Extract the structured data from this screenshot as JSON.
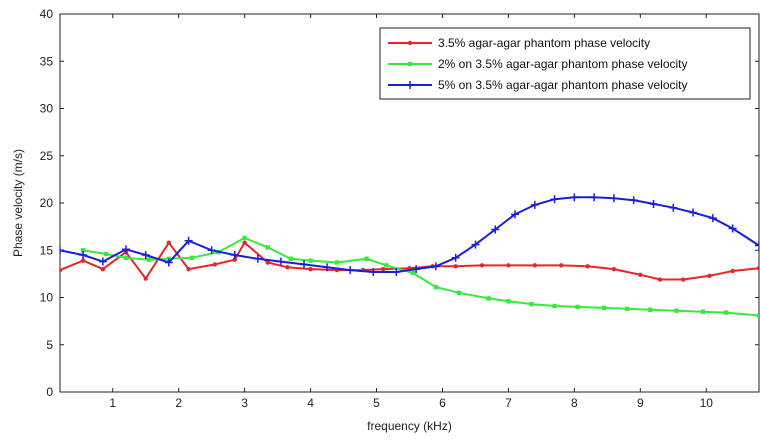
{
  "chart_data": {
    "type": "line",
    "title": "",
    "xlabel": "frequency (kHz)",
    "ylabel": "Phase velocity (m/s)",
    "xlim": [
      0.2,
      10.8
    ],
    "ylim": [
      0,
      40
    ],
    "xticks": [
      1,
      2,
      3,
      4,
      5,
      6,
      7,
      8,
      9,
      10
    ],
    "yticks": [
      0,
      5,
      10,
      15,
      20,
      25,
      30,
      35,
      40
    ],
    "grid": false,
    "legend_position": "top-right",
    "series": [
      {
        "name": "3.5% agar-agar phantom phase velocity",
        "color": "#e8262a",
        "marker": "dot",
        "x": [
          0.2,
          0.55,
          0.85,
          1.2,
          1.5,
          1.85,
          2.15,
          2.55,
          2.85,
          3.0,
          3.35,
          3.65,
          4.0,
          4.4,
          4.8,
          5.1,
          5.5,
          5.85,
          6.2,
          6.6,
          7.0,
          7.4,
          7.8,
          8.2,
          8.6,
          9.0,
          9.3,
          9.65,
          10.05,
          10.4,
          10.8
        ],
        "y": [
          12.9,
          13.9,
          13.0,
          14.8,
          12.0,
          15.8,
          13.0,
          13.5,
          14.0,
          15.8,
          13.7,
          13.2,
          13.0,
          12.9,
          12.9,
          13.0,
          13.1,
          13.3,
          13.3,
          13.4,
          13.4,
          13.4,
          13.4,
          13.3,
          13.0,
          12.4,
          11.9,
          11.9,
          12.3,
          12.8,
          13.1
        ]
      },
      {
        "name": "2% on 3.5% agar-agar phantom phase velocity",
        "color": "#39e83b",
        "marker": "square",
        "x": [
          0.55,
          0.9,
          1.2,
          1.55,
          1.85,
          2.2,
          2.6,
          3.0,
          3.35,
          3.7,
          4.0,
          4.4,
          4.85,
          5.15,
          5.55,
          5.9,
          6.25,
          6.7,
          7.0,
          7.35,
          7.7,
          8.05,
          8.45,
          8.8,
          9.15,
          9.55,
          9.95,
          10.3,
          10.8
        ],
        "y": [
          15.0,
          14.6,
          14.2,
          14.0,
          14.1,
          14.2,
          14.8,
          16.3,
          15.3,
          14.1,
          13.9,
          13.7,
          14.1,
          13.4,
          12.6,
          11.1,
          10.5,
          9.9,
          9.6,
          9.3,
          9.1,
          9.0,
          8.9,
          8.8,
          8.7,
          8.6,
          8.5,
          8.4,
          8.1
        ]
      },
      {
        "name": "5% on 3.5% agar-agar phantom phase velocity",
        "color": "#1b1fd6",
        "marker": "plus",
        "x": [
          0.2,
          0.55,
          0.85,
          1.2,
          1.5,
          1.85,
          2.15,
          2.5,
          2.85,
          3.2,
          3.55,
          3.9,
          4.25,
          4.6,
          4.95,
          5.3,
          5.6,
          5.9,
          6.2,
          6.5,
          6.8,
          7.1,
          7.4,
          7.7,
          8.0,
          8.3,
          8.6,
          8.9,
          9.2,
          9.5,
          9.8,
          10.1,
          10.4,
          10.8
        ],
        "y": [
          15.0,
          14.5,
          13.8,
          15.1,
          14.5,
          13.7,
          16.0,
          15.0,
          14.5,
          14.1,
          13.8,
          13.5,
          13.2,
          12.9,
          12.7,
          12.7,
          13.0,
          13.3,
          14.2,
          15.6,
          17.2,
          18.8,
          19.8,
          20.4,
          20.6,
          20.6,
          20.5,
          20.3,
          19.9,
          19.5,
          19.0,
          18.4,
          17.3,
          15.5
        ]
      }
    ]
  }
}
